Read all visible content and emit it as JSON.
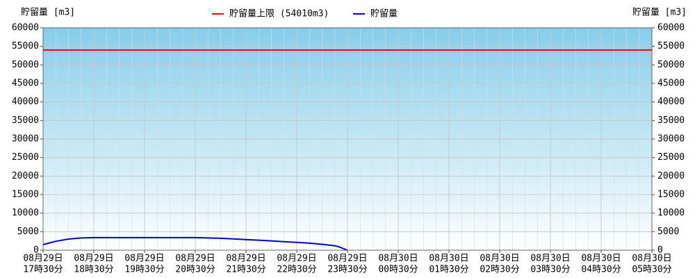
{
  "chart_data": {
    "type": "line",
    "y_label": "貯留量 [m3]",
    "y2_label": "貯留量 [m3]",
    "limit": {
      "name": "貯留量上限 (54010m3)",
      "color": "#ff0000",
      "value": 54010
    },
    "x": [
      "08-29 17:30",
      "08-29 17:45",
      "08-29 18:00",
      "08-29 18:15",
      "08-29 18:30",
      "08-29 18:45",
      "08-29 19:00",
      "08-29 19:15",
      "08-29 19:30",
      "08-29 19:45",
      "08-29 20:00",
      "08-29 20:15",
      "08-29 20:30",
      "08-29 20:45",
      "08-29 21:00",
      "08-29 21:15",
      "08-29 21:30",
      "08-29 21:45",
      "08-29 22:00",
      "08-29 22:15",
      "08-29 22:30",
      "08-29 22:45",
      "08-29 23:00",
      "08-29 23:15",
      "08-29 23:20",
      "08-29 23:30"
    ],
    "series": [
      {
        "name": "貯留量",
        "color": "#0000cc",
        "values": [
          1500,
          2400,
          3000,
          3300,
          3400,
          3400,
          3400,
          3400,
          3400,
          3400,
          3400,
          3400,
          3400,
          3300,
          3200,
          3050,
          2850,
          2700,
          2500,
          2300,
          2100,
          1900,
          1600,
          1200,
          900,
          0
        ]
      }
    ],
    "xlim": [
      "08-29 17:30",
      "08-30 05:30"
    ],
    "xticks": [
      {
        "value": "08-29 17:30",
        "label": [
          "08月29日",
          "17時30分"
        ]
      },
      {
        "value": "08-29 18:30",
        "label": [
          "08月29日",
          "18時30分"
        ]
      },
      {
        "value": "08-29 19:30",
        "label": [
          "08月29日",
          "19時30分"
        ]
      },
      {
        "value": "08-29 20:30",
        "label": [
          "08月29日",
          "20時30分"
        ]
      },
      {
        "value": "08-29 21:30",
        "label": [
          "08月29日",
          "21時30分"
        ]
      },
      {
        "value": "08-29 22:30",
        "label": [
          "08月29日",
          "22時30分"
        ]
      },
      {
        "value": "08-29 23:30",
        "label": [
          "08月29日",
          "23時30分"
        ]
      },
      {
        "value": "08-30 00:30",
        "label": [
          "08月30日",
          "00時30分"
        ]
      },
      {
        "value": "08-30 01:30",
        "label": [
          "08月30日",
          "01時30分"
        ]
      },
      {
        "value": "08-30 02:30",
        "label": [
          "08月30日",
          "02時30分"
        ]
      },
      {
        "value": "08-30 03:30",
        "label": [
          "08月30日",
          "03時30分"
        ]
      },
      {
        "value": "08-30 04:30",
        "label": [
          "08月30日",
          "04時30分"
        ]
      },
      {
        "value": "08-30 05:30",
        "label": [
          "08月30日",
          "05時30分"
        ]
      }
    ],
    "ylim": [
      0,
      60000
    ],
    "yticks": [
      0,
      5000,
      10000,
      15000,
      20000,
      25000,
      30000,
      35000,
      40000,
      45000,
      50000,
      55000,
      60000
    ],
    "y2lim": [
      0,
      60000
    ],
    "y2ticks": [
      0,
      5000,
      10000,
      15000,
      20000,
      25000,
      30000,
      35000,
      40000,
      45000,
      50000,
      55000,
      60000
    ],
    "grid": true
  }
}
